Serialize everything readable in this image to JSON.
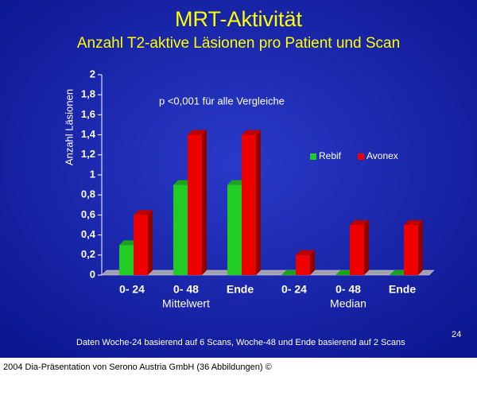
{
  "chart_data": {
    "type": "bar3d",
    "title": "MRT-Aktivität",
    "subtitle": "Anzahl T2-aktive Läsionen pro Patient und Scan",
    "y_label": "Anzahl Läsionen",
    "annotation": "p <0,001 für alle Vergleiche",
    "categories": [
      "0- 24",
      "0- 48",
      "Ende",
      "0- 24",
      "0- 48",
      "Ende"
    ],
    "group_labels": [
      "Mittelwert",
      "Median"
    ],
    "series": [
      {
        "name": "Rebif",
        "color": "#22cc22",
        "values": [
          0.3,
          0.9,
          0.9,
          0,
          0,
          0
        ]
      },
      {
        "name": "Avonex",
        "color": "#ee0000",
        "values": [
          0.6,
          1.4,
          1.4,
          0.2,
          0.5,
          0.5
        ]
      }
    ],
    "ylim": [
      0,
      2
    ],
    "yticks": [
      0,
      {
        "value": 0.2,
        "label": "0,2"
      },
      {
        "value": 0.4,
        "label": "0,4"
      },
      {
        "value": 0.6,
        "label": "0,6"
      },
      {
        "value": 0.8,
        "label": "0,8"
      },
      1,
      {
        "value": 1.2,
        "label": "1,2"
      },
      {
        "value": 1.4,
        "label": "1,4"
      },
      {
        "value": 1.6,
        "label": "1,6"
      },
      {
        "value": 1.8,
        "label": "1,8"
      },
      2
    ],
    "footnote": "Daten Woche-24 basierend auf 6 Scans, Woche-48 und Ende basierend auf 2 Scans",
    "slide_number": "24",
    "credit": "2004 Dia-Präsentation von Serono Austria GmbH (36 Abbildungen) ©"
  }
}
